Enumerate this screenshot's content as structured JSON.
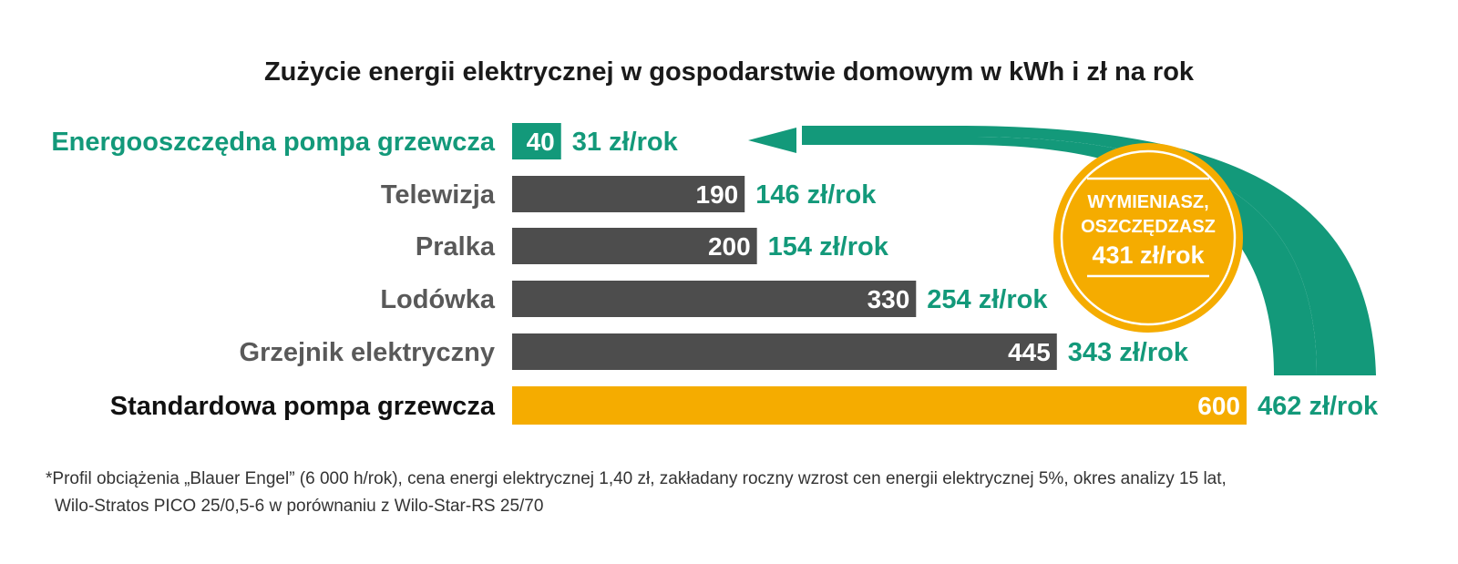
{
  "colors": {
    "green": "#13997a",
    "gray": "#4d4d4d",
    "yellow": "#f5ac00",
    "gray_text": "#595959",
    "black_text": "#111111"
  },
  "chart_data": {
    "type": "bar",
    "orientation": "horizontal",
    "title": "Zużycie energii elektrycznej w gospodarstwie domowym w kWh i zł na rok",
    "categories": [
      "Energooszczędna pompa grzewcza",
      "Telewizja",
      "Pralka",
      "Lodówka",
      "Grzejnik elektryczny",
      "Standardowa pompa grzewcza"
    ],
    "values": [
      40,
      190,
      200,
      330,
      445,
      600
    ],
    "value_labels": [
      "40",
      "190",
      "200",
      "330",
      "445",
      "600"
    ],
    "costs": [
      "31 zł/rok",
      "146 zł/rok",
      "154 zł/rok",
      "254 zł/rok",
      "343 zł/rok",
      "462 zł/rok"
    ],
    "bar_colors": [
      "green",
      "gray",
      "gray",
      "gray",
      "gray",
      "yellow"
    ],
    "label_colors": [
      "green",
      "gray_text",
      "gray_text",
      "gray_text",
      "gray_text",
      "black_text"
    ],
    "xlim": [
      0,
      600
    ],
    "grid": false,
    "legend": "none"
  },
  "badge": {
    "line1": "WYMIENIASZ,",
    "line2": "OSZCZĘDZASZ",
    "line3": "431 zł/rok"
  },
  "footnote": {
    "line1": "*Profil obciążenia „Blauer Engel” (6 000 h/rok), cena energi elektrycznej 1,40 zł, zakładany roczny wzrost cen energii elektrycznej 5%, okres analizy 15 lat,",
    "line2": "Wilo-Stratos PICO 25/0,5-6 w porównaniu z Wilo-Star-RS 25/70"
  }
}
